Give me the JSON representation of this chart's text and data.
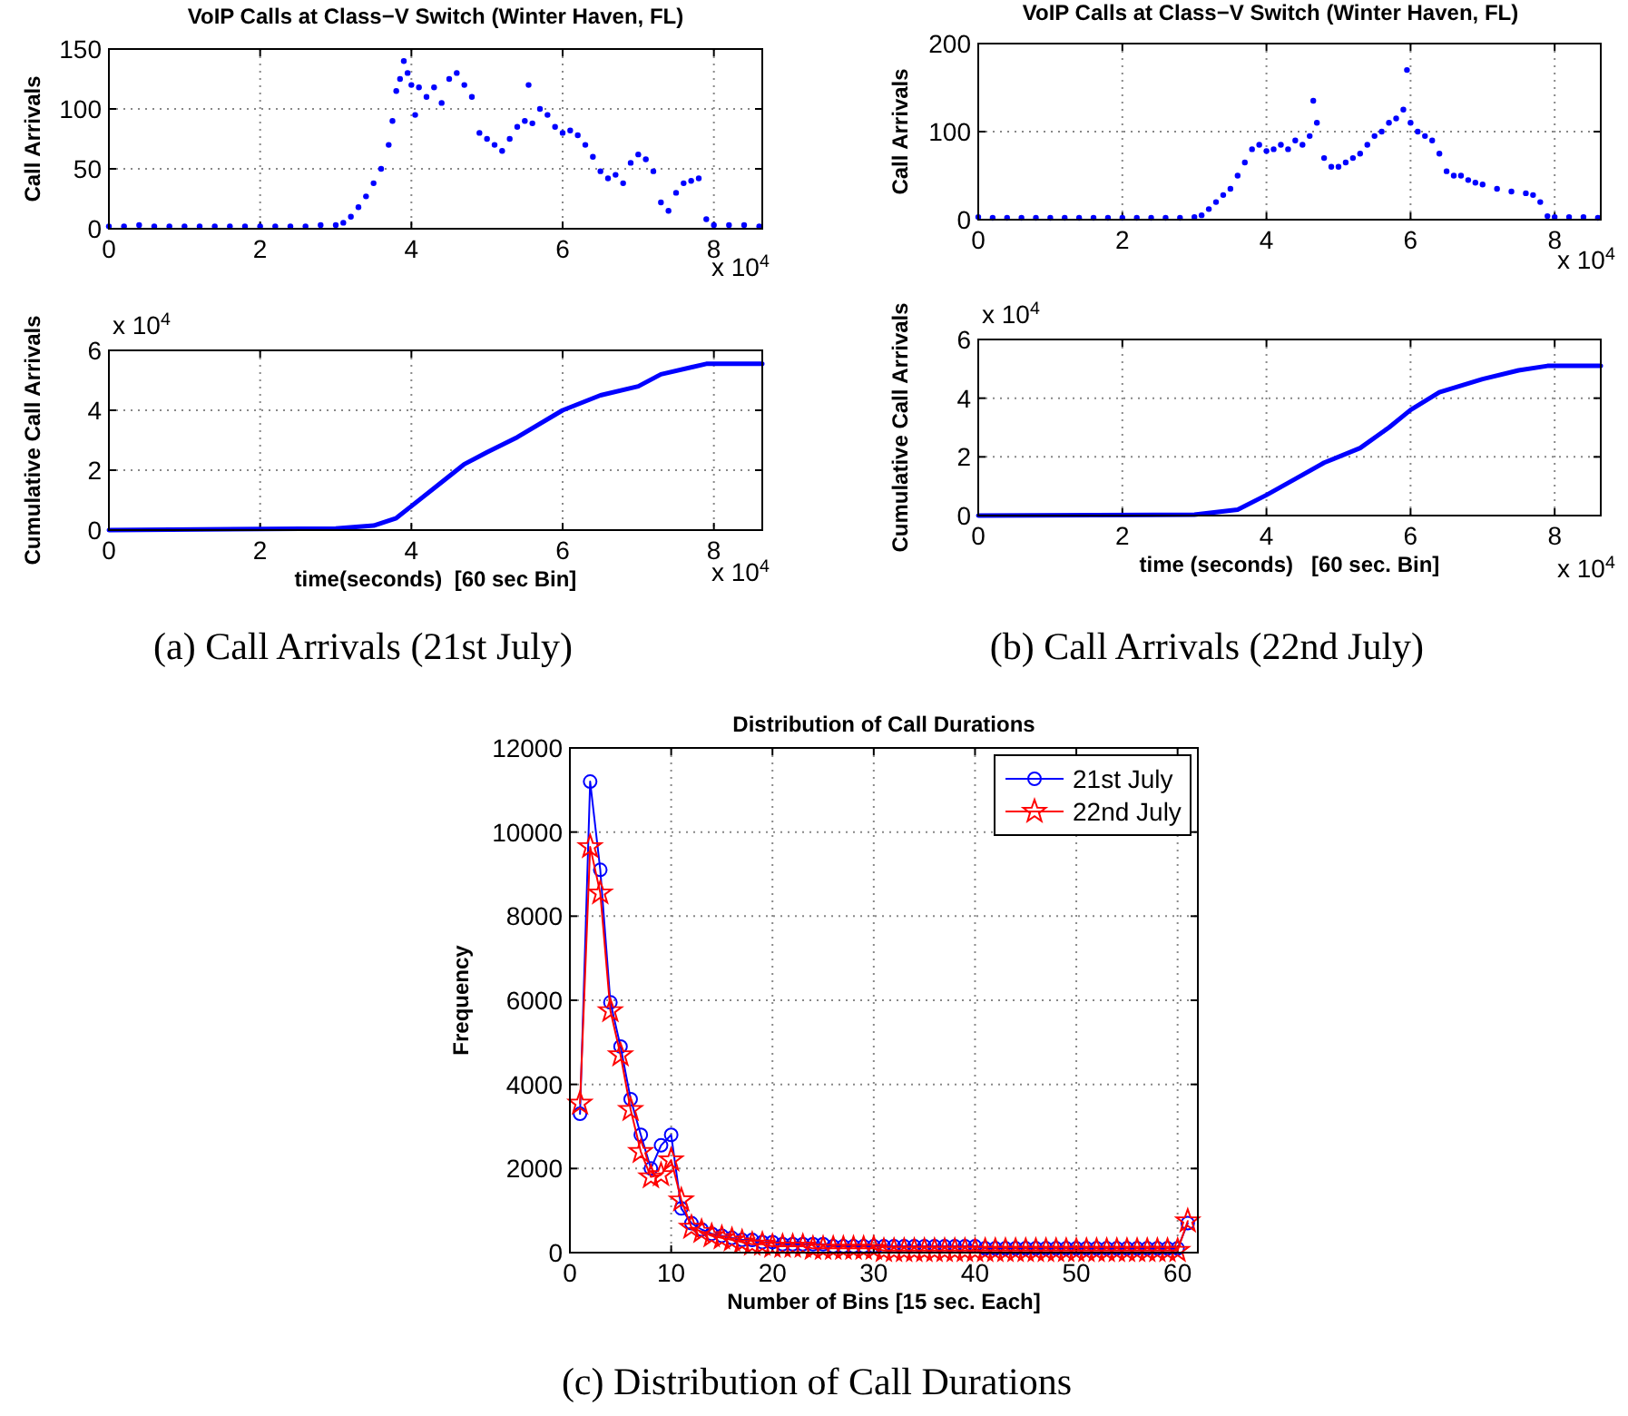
{
  "chart_data": [
    {
      "type": "scatter",
      "title": "VoIP Calls at Class−V Switch (Winter Haven, FL)",
      "ylabel": "Call Arrivals",
      "xlim": [
        0,
        8.64
      ],
      "xticks": [
        0,
        2,
        4,
        6,
        8
      ],
      "ylim": [
        0,
        150
      ],
      "yticks": [
        0,
        50,
        100,
        150
      ],
      "grid": true,
      "marker": "circle",
      "annotations": [
        "x 10$^{4}$"
      ],
      "series": [
        {
          "color": "#0000ff",
          "x": [
            0,
            0.2,
            0.4,
            0.6,
            0.8,
            1.0,
            1.2,
            1.4,
            1.6,
            1.8,
            2.0,
            2.2,
            2.4,
            2.6,
            2.8,
            3.0,
            3.1,
            3.2,
            3.3,
            3.4,
            3.5,
            3.6,
            3.7,
            3.75,
            3.8,
            3.85,
            3.9,
            3.95,
            4.0,
            4.05,
            4.1,
            4.2,
            4.3,
            4.4,
            4.5,
            4.6,
            4.7,
            4.8,
            4.9,
            5.0,
            5.1,
            5.2,
            5.3,
            5.4,
            5.5,
            5.55,
            5.6,
            5.7,
            5.8,
            5.9,
            6.0,
            6.1,
            6.2,
            6.3,
            6.4,
            6.5,
            6.6,
            6.7,
            6.8,
            6.9,
            7.0,
            7.1,
            7.2,
            7.3,
            7.4,
            7.5,
            7.6,
            7.7,
            7.8,
            7.9,
            8.0,
            8.2,
            8.4,
            8.6
          ],
          "values": [
            2,
            2,
            3,
            2,
            2,
            2,
            2,
            2,
            2,
            2,
            2,
            2,
            2,
            2,
            3,
            3,
            5,
            10,
            18,
            27,
            38,
            50,
            70,
            90,
            115,
            125,
            140,
            130,
            120,
            95,
            118,
            110,
            118,
            105,
            125,
            130,
            120,
            110,
            80,
            75,
            70,
            65,
            75,
            85,
            90,
            120,
            88,
            100,
            95,
            85,
            80,
            82,
            78,
            70,
            60,
            48,
            42,
            45,
            38,
            55,
            62,
            58,
            48,
            22,
            15,
            30,
            38,
            40,
            42,
            8,
            3,
            3,
            3,
            2
          ]
        }
      ]
    },
    {
      "type": "line",
      "ylabel": "Cumulative Call Arrivals",
      "xlabel": "time(seconds)  [60 sec Bin]",
      "xlim": [
        0,
        8.64
      ],
      "xticks": [
        0,
        2,
        4,
        6,
        8
      ],
      "ylim": [
        0,
        6
      ],
      "yticks": [
        0,
        2,
        4,
        6
      ],
      "grid": true,
      "annotations": [
        "x 10$^{4}$",
        "x 10$^{4}$",
        "(a) Call Arrivals (21st July)"
      ],
      "series": [
        {
          "color": "#0000ff",
          "x": [
            0,
            3,
            3.5,
            3.8,
            4,
            4.4,
            4.7,
            5,
            5.4,
            6,
            6.5,
            7,
            7.3,
            7.9,
            8.64
          ],
          "values": [
            0,
            0.05,
            0.15,
            0.4,
            0.8,
            1.6,
            2.2,
            2.6,
            3.1,
            4,
            4.5,
            4.8,
            5.2,
            5.55,
            5.55
          ]
        }
      ]
    },
    {
      "type": "scatter",
      "title": "VoIP Calls at Class−V Switch (Winter Haven, FL)",
      "ylabel": "Call Arrivals",
      "xlim": [
        0,
        8.64
      ],
      "xticks": [
        0,
        2,
        4,
        6,
        8
      ],
      "ylim": [
        0,
        200
      ],
      "yticks": [
        0,
        100,
        200
      ],
      "grid": true,
      "marker": "circle",
      "annotations": [
        "x 10$^{4}$"
      ],
      "series": [
        {
          "color": "#0000ff",
          "x": [
            0,
            0.2,
            0.4,
            0.6,
            0.8,
            1.0,
            1.2,
            1.4,
            1.6,
            1.8,
            2.0,
            2.2,
            2.4,
            2.6,
            2.8,
            3.0,
            3.1,
            3.2,
            3.3,
            3.4,
            3.5,
            3.6,
            3.7,
            3.8,
            3.9,
            4.0,
            4.1,
            4.2,
            4.3,
            4.4,
            4.5,
            4.6,
            4.65,
            4.7,
            4.8,
            4.9,
            5.0,
            5.1,
            5.2,
            5.3,
            5.4,
            5.5,
            5.6,
            5.7,
            5.8,
            5.9,
            5.95,
            6.0,
            6.1,
            6.2,
            6.3,
            6.4,
            6.5,
            6.6,
            6.7,
            6.8,
            6.9,
            7.0,
            7.2,
            7.4,
            7.6,
            7.7,
            7.8,
            7.9,
            8.0,
            8.2,
            8.4,
            8.6
          ],
          "values": [
            3,
            2,
            2,
            2,
            2,
            2,
            2,
            2,
            2,
            2,
            2,
            2,
            2,
            2,
            2,
            3,
            5,
            12,
            20,
            28,
            35,
            50,
            65,
            80,
            85,
            78,
            80,
            85,
            80,
            90,
            85,
            95,
            135,
            110,
            70,
            60,
            60,
            65,
            70,
            75,
            85,
            95,
            100,
            110,
            115,
            125,
            170,
            110,
            100,
            95,
            90,
            75,
            55,
            50,
            50,
            45,
            42,
            40,
            35,
            32,
            30,
            28,
            20,
            4,
            3,
            3,
            3,
            2
          ]
        }
      ]
    },
    {
      "type": "line",
      "ylabel": "Cumulative Call Arrivals",
      "xlabel": "time (seconds)   [60 sec. Bin]",
      "xlim": [
        0,
        8.64
      ],
      "xticks": [
        0,
        2,
        4,
        6,
        8
      ],
      "ylim": [
        0,
        6
      ],
      "yticks": [
        0,
        2,
        4,
        6
      ],
      "grid": true,
      "annotations": [
        "x 10$^{4}$",
        "x 10$^{4}$",
        "(b) Call Arrivals (22nd July)"
      ],
      "series": [
        {
          "color": "#0000ff",
          "x": [
            0,
            3,
            3.6,
            4,
            4.4,
            4.8,
            5.3,
            5.7,
            6,
            6.4,
            7,
            7.5,
            7.9,
            8.64
          ],
          "values": [
            0,
            0.03,
            0.2,
            0.7,
            1.25,
            1.8,
            2.3,
            3,
            3.6,
            4.2,
            4.65,
            4.95,
            5.1,
            5.1
          ]
        }
      ]
    },
    {
      "type": "line",
      "title": "Distribution of Call Durations",
      "xlabel": "Number of Bins [15 sec. Each]",
      "ylabel": "Frequency",
      "xlim": [
        0,
        62
      ],
      "xticks": [
        0,
        10,
        20,
        30,
        40,
        50,
        60
      ],
      "ylim": [
        0,
        12000
      ],
      "yticks": [
        0,
        2000,
        4000,
        6000,
        8000,
        10000,
        12000
      ],
      "grid": true,
      "legend": "top right",
      "annotations": [
        "(c) Distribution of Call Durations"
      ],
      "x": [
        1,
        2,
        3,
        4,
        5,
        6,
        7,
        8,
        9,
        10,
        11,
        12,
        13,
        14,
        15,
        16,
        17,
        18,
        19,
        20,
        21,
        22,
        23,
        24,
        25,
        26,
        27,
        28,
        29,
        30,
        31,
        32,
        33,
        34,
        35,
        36,
        37,
        38,
        39,
        40,
        41,
        42,
        43,
        44,
        45,
        46,
        47,
        48,
        49,
        50,
        51,
        52,
        53,
        54,
        55,
        56,
        57,
        58,
        59,
        60,
        61
      ],
      "series": [
        {
          "name": "21st July",
          "color": "#0000ff",
          "marker": "circle",
          "values": [
            3300,
            11200,
            9100,
            5950,
            4900,
            3650,
            2800,
            2000,
            2550,
            2800,
            1050,
            700,
            550,
            450,
            400,
            350,
            300,
            300,
            250,
            250,
            200,
            200,
            200,
            200,
            200,
            150,
            150,
            150,
            150,
            150,
            150,
            150,
            150,
            150,
            150,
            150,
            150,
            150,
            150,
            150,
            100,
            100,
            100,
            100,
            100,
            100,
            100,
            100,
            100,
            100,
            100,
            100,
            100,
            100,
            100,
            100,
            100,
            100,
            100,
            100,
            700
          ]
        },
        {
          "name": "22nd July",
          "color": "#ff0000",
          "marker": "star",
          "values": [
            3550,
            9650,
            8550,
            5750,
            4700,
            3400,
            2400,
            1800,
            1850,
            2200,
            1250,
            600,
            500,
            400,
            350,
            300,
            250,
            200,
            200,
            150,
            150,
            150,
            150,
            100,
            100,
            100,
            100,
            100,
            100,
            100,
            50,
            50,
            50,
            50,
            50,
            50,
            50,
            50,
            50,
            50,
            50,
            50,
            50,
            50,
            50,
            50,
            50,
            50,
            50,
            50,
            50,
            50,
            50,
            50,
            50,
            50,
            50,
            50,
            50,
            50,
            750
          ]
        }
      ]
    }
  ]
}
